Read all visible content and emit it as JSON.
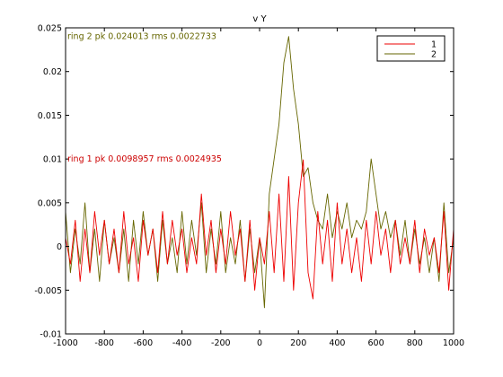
{
  "chart_data": {
    "type": "line",
    "title": "v Y",
    "xlabel": "",
    "ylabel": "",
    "xlim": [
      -1000,
      1000
    ],
    "ylim": [
      -0.01,
      0.025
    ],
    "xticks": [
      "-1000",
      "-800",
      "-600",
      "-400",
      "-200",
      "0",
      "200",
      "400",
      "600",
      "800",
      "1000"
    ],
    "yticks": [
      "-0.01",
      "-0.005",
      "0",
      "0.005",
      "0.01",
      "0.015",
      "0.02",
      "0.025"
    ],
    "grid": false,
    "legend_position": "top-right",
    "annotations": [
      {
        "text": "ring 2 pk 0.024013 rms 0.0022733",
        "x": -1000,
        "y": 0.0235,
        "color": "#666600"
      },
      {
        "text": "ring 1 pk 0.0098957 rms 0.0024935",
        "x": -1000,
        "y": 0.0095,
        "color": "#cc0000"
      }
    ],
    "series": [
      {
        "name": "1",
        "color": "#ee0000",
        "x": [
          -1000,
          -975,
          -950,
          -925,
          -900,
          -875,
          -850,
          -825,
          -800,
          -775,
          -750,
          -725,
          -700,
          -675,
          -650,
          -625,
          -600,
          -575,
          -550,
          -525,
          -500,
          -475,
          -450,
          -425,
          -400,
          -375,
          -350,
          -325,
          -300,
          -275,
          -250,
          -225,
          -200,
          -175,
          -150,
          -125,
          -100,
          -75,
          -50,
          -25,
          0,
          25,
          50,
          75,
          100,
          125,
          150,
          175,
          200,
          225,
          250,
          275,
          300,
          325,
          350,
          375,
          400,
          425,
          450,
          475,
          500,
          525,
          550,
          575,
          600,
          625,
          650,
          675,
          700,
          725,
          750,
          775,
          800,
          825,
          850,
          875,
          900,
          925,
          950,
          975,
          1000
        ],
        "y": [
          0.001,
          -0.002,
          0.003,
          -0.004,
          0.002,
          -0.003,
          0.004,
          -0.001,
          0.003,
          -0.002,
          0.002,
          -0.003,
          0.004,
          -0.002,
          0.001,
          -0.004,
          0.003,
          -0.001,
          0.002,
          -0.003,
          0.004,
          -0.002,
          0.003,
          -0.001,
          0.002,
          -0.003,
          0.001,
          -0.002,
          0.006,
          -0.001,
          0.003,
          -0.003,
          0.002,
          -0.002,
          0.004,
          -0.001,
          0.002,
          -0.004,
          0.003,
          -0.005,
          0.001,
          -0.002,
          0.004,
          -0.003,
          0.006,
          -0.004,
          0.008,
          -0.005,
          0.005,
          0.0099,
          -0.003,
          -0.006,
          0.004,
          -0.002,
          0.003,
          -0.004,
          0.005,
          -0.002,
          0.002,
          -0.003,
          0.001,
          -0.004,
          0.003,
          -0.002,
          0.004,
          -0.001,
          0.002,
          -0.003,
          0.003,
          -0.002,
          0.001,
          -0.002,
          0.003,
          -0.003,
          0.002,
          -0.001,
          0.001,
          -0.003,
          0.004,
          -0.005,
          0.002
        ]
      },
      {
        "name": "2",
        "color": "#666600",
        "x": [
          -1000,
          -975,
          -950,
          -925,
          -900,
          -875,
          -850,
          -825,
          -800,
          -775,
          -750,
          -725,
          -700,
          -675,
          -650,
          -625,
          -600,
          -575,
          -550,
          -525,
          -500,
          -475,
          -450,
          -425,
          -400,
          -375,
          -350,
          -325,
          -300,
          -275,
          -250,
          -225,
          -200,
          -175,
          -150,
          -125,
          -100,
          -75,
          -50,
          -25,
          0,
          25,
          50,
          75,
          100,
          125,
          150,
          175,
          200,
          225,
          250,
          275,
          300,
          325,
          350,
          375,
          400,
          425,
          450,
          475,
          500,
          525,
          550,
          575,
          600,
          625,
          650,
          675,
          700,
          725,
          750,
          775,
          800,
          825,
          850,
          875,
          900,
          925,
          950,
          975,
          1000
        ],
        "y": [
          0.004,
          -0.003,
          0.002,
          -0.002,
          0.005,
          -0.003,
          0.002,
          -0.004,
          0.003,
          -0.002,
          0.001,
          -0.003,
          0.002,
          -0.004,
          0.003,
          -0.002,
          0.004,
          -0.001,
          0.002,
          -0.004,
          0.003,
          -0.002,
          0.001,
          -0.003,
          0.004,
          -0.002,
          0.003,
          -0.001,
          0.005,
          -0.003,
          0.002,
          -0.002,
          0.004,
          -0.003,
          0.001,
          -0.002,
          0.003,
          -0.004,
          0.002,
          -0.003,
          0.001,
          -0.007,
          0.006,
          0.01,
          0.014,
          0.021,
          0.024,
          0.018,
          0.014,
          0.008,
          0.009,
          0.005,
          0.003,
          0.002,
          0.006,
          0.001,
          0.004,
          0.002,
          0.005,
          0.001,
          0.003,
          0.002,
          0.004,
          0.01,
          0.006,
          0.002,
          0.004,
          0.001,
          0.003,
          -0.001,
          0.003,
          -0.002,
          0.002,
          -0.002,
          0.001,
          -0.003,
          0.001,
          -0.004,
          0.005,
          -0.003,
          0.001
        ]
      }
    ]
  }
}
